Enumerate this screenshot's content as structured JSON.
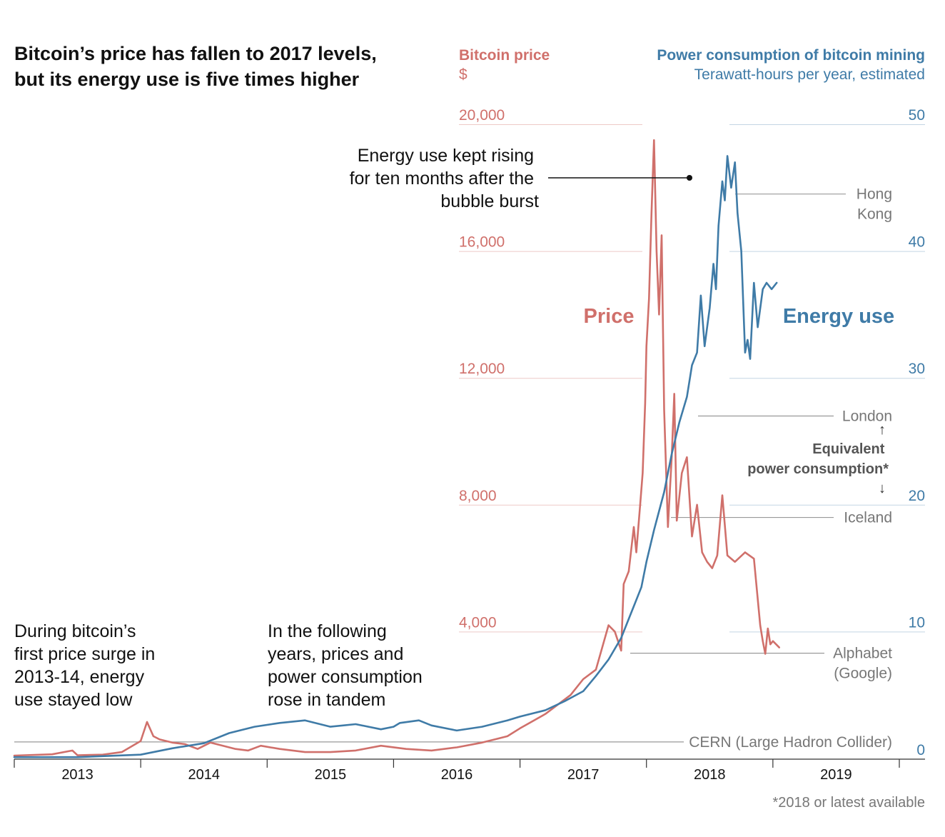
{
  "chart_data": {
    "type": "line",
    "title": [
      "Bitcoin’s price has fallen to 2017 levels,",
      "but its energy use is five times higher"
    ],
    "colors": {
      "price": "#d0706b",
      "energy": "#3f7ba7",
      "reference": "#999999",
      "text": "#111111",
      "muted": "#777777"
    },
    "left_axis": {
      "title": "Bitcoin price",
      "unit": "$",
      "range": [
        0,
        20000
      ],
      "ticks": [
        4000,
        8000,
        12000,
        16000,
        20000
      ],
      "tick_labels": [
        "4,000",
        "8,000",
        "12,000",
        "16,000",
        "20,000"
      ]
    },
    "right_axis": {
      "title": "Power consumption of bitcoin mining",
      "subtitle": "Terawatt-hours per year, estimated",
      "range": [
        0,
        50
      ],
      "ticks": [
        0,
        10,
        20,
        30,
        40,
        50
      ],
      "tick_labels": [
        "0",
        "10",
        "20",
        "30",
        "40",
        "50"
      ]
    },
    "x_axis": {
      "range": [
        2012.5,
        2019.5
      ],
      "boundaries": [
        2012.5,
        2013.5,
        2014.5,
        2015.5,
        2016.5,
        2017.5,
        2018.5,
        2019.5
      ],
      "tick_labels": [
        "2013",
        "2014",
        "2015",
        "2016",
        "2017",
        "2018",
        "2019"
      ],
      "tick_positions": [
        2013,
        2014,
        2015,
        2016,
        2017,
        2018,
        2019
      ]
    },
    "series": [
      {
        "name": "Price",
        "axis": "left",
        "x": [
          2012.5,
          2012.8,
          2012.96,
          2013.0,
          2013.1,
          2013.2,
          2013.35,
          2013.5,
          2013.55,
          2013.6,
          2013.65,
          2013.75,
          2013.85,
          2013.95,
          2014.05,
          2014.15,
          2014.25,
          2014.35,
          2014.45,
          2014.6,
          2014.8,
          2015.0,
          2015.2,
          2015.4,
          2015.6,
          2015.8,
          2016.0,
          2016.2,
          2016.3,
          2016.4,
          2016.5,
          2016.7,
          2016.9,
          2017.0,
          2017.1,
          2017.2,
          2017.25,
          2017.3,
          2017.32,
          2017.36,
          2017.4,
          2017.42,
          2017.45,
          2017.47,
          2017.49,
          2017.5,
          2017.52,
          2017.54,
          2017.56,
          2017.58,
          2017.6,
          2017.62,
          2017.64,
          2017.67,
          2017.7,
          2017.72,
          2017.74,
          2017.78,
          2017.82,
          2017.86,
          2017.9,
          2017.94,
          2017.98,
          2018.02,
          2018.06,
          2018.1,
          2018.14,
          2018.2,
          2018.28,
          2018.35,
          2018.4,
          2018.42,
          2018.44,
          2018.46,
          2018.48,
          2018.5,
          2018.55
        ],
        "values": [
          90,
          130,
          250,
          100,
          110,
          120,
          200,
          550,
          1150,
          700,
          600,
          500,
          450,
          300,
          500,
          400,
          300,
          250,
          400,
          300,
          200,
          200,
          250,
          400,
          300,
          250,
          350,
          500,
          600,
          700,
          950,
          1400,
          2000,
          2500,
          2800,
          4200,
          4000,
          3400,
          5500,
          5900,
          7300,
          6500,
          8000,
          9000,
          11200,
          13000,
          14500,
          17200,
          19500,
          16000,
          14000,
          16500,
          11000,
          7300,
          9500,
          11500,
          7500,
          9000,
          9500,
          7000,
          8000,
          6500,
          6200,
          6000,
          6400,
          8300,
          6400,
          6200,
          6500,
          6300,
          4200,
          3700,
          3300,
          4100,
          3600,
          3700,
          3500
        ]
      },
      {
        "name": "Energy use",
        "axis": "right",
        "x": [
          2012.5,
          2013.0,
          2013.5,
          2013.75,
          2014.0,
          2014.2,
          2014.4,
          2014.6,
          2014.8,
          2015.0,
          2015.2,
          2015.4,
          2015.5,
          2015.55,
          2015.7,
          2015.8,
          2016.0,
          2016.2,
          2016.4,
          2016.5,
          2016.7,
          2016.85,
          2017.0,
          2017.1,
          2017.2,
          2017.3,
          2017.36,
          2017.4,
          2017.46,
          2017.5,
          2017.56,
          2017.64,
          2017.7,
          2017.76,
          2017.82,
          2017.86,
          2017.9,
          2017.93,
          2017.96,
          2018.0,
          2018.03,
          2018.05,
          2018.07,
          2018.1,
          2018.12,
          2018.14,
          2018.17,
          2018.2,
          2018.22,
          2018.25,
          2018.28,
          2018.3,
          2018.32,
          2018.35,
          2018.38,
          2018.42,
          2018.45,
          2018.49,
          2018.53
        ],
        "values": [
          0.1,
          0.1,
          0.3,
          0.8,
          1.2,
          2.0,
          2.5,
          2.8,
          3.0,
          2.5,
          2.7,
          2.3,
          2.5,
          2.8,
          3.0,
          2.6,
          2.2,
          2.5,
          3.0,
          3.3,
          3.8,
          4.5,
          5.3,
          6.5,
          7.8,
          9.5,
          11.0,
          12.0,
          13.5,
          15.5,
          18.0,
          21.0,
          24.0,
          26.5,
          28.5,
          31.0,
          32.0,
          36.5,
          32.5,
          35.5,
          39.0,
          37.0,
          42.0,
          45.5,
          44.0,
          47.5,
          45.0,
          47.0,
          43.0,
          40.0,
          32.0,
          33.0,
          31.5,
          37.5,
          34.0,
          37.0,
          37.5,
          37.0,
          37.5
        ]
      }
    ],
    "reference_lines": [
      {
        "label": [
          "Hong",
          "Kong"
        ],
        "value": 44.5
      },
      {
        "label": [
          "London"
        ],
        "value": 27.0
      },
      {
        "label": [
          "Iceland"
        ],
        "value": 19.0
      },
      {
        "label": [
          "Alphabet",
          "(Google)"
        ],
        "value": 8.3
      },
      {
        "label": [
          "CERN (Large Hadron Collider)"
        ],
        "value": 1.3
      }
    ],
    "equivalent_label": [
      "Equivalent",
      "power consumption*"
    ],
    "series_labels": {
      "price": "Price",
      "energy": "Energy use"
    },
    "annotations": {
      "peak_note": [
        "Energy use kept rising",
        "for ten months after the",
        "bubble burst"
      ],
      "surge_note": [
        "During bitcoin’s",
        "first price surge in",
        "2013-14, energy",
        "use stayed low"
      ],
      "tandem_note": [
        "In the following",
        "years, prices and",
        "power consumption",
        "rose in tandem"
      ]
    },
    "footnote": "*2018 or latest available"
  }
}
